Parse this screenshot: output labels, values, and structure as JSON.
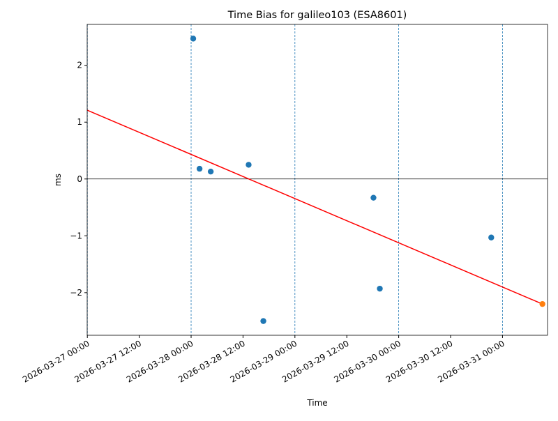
{
  "chart_data": {
    "type": "scatter",
    "title": "Time Bias for galileo103 (ESA8601)",
    "x_label": "Time",
    "y_label": "ms",
    "series": [
      {
        "type": "scatter",
        "color": "#1f77b4",
        "x": [
          "2026-03-28 00:29",
          "2026-03-28 01:57",
          "2026-03-28 04:32",
          "2026-03-28 13:18",
          "2026-03-28 16:42",
          "2026-03-29 18:10",
          "2026-03-29 19:38",
          "2026-03-30 21:24"
        ],
        "values": [
          2.47,
          0.18,
          0.13,
          0.25,
          -2.5,
          -0.33,
          -1.93,
          -1.03
        ]
      },
      {
        "type": "scatter",
        "color": "#ff7f0e",
        "x": [
          "2026-03-31 09:14"
        ],
        "values": [
          -2.2
        ]
      },
      {
        "type": "line",
        "color": "#ff0000",
        "x": [
          "2026-03-27 00:00",
          "2026-03-31 09:14"
        ],
        "values": [
          1.21,
          -2.2
        ]
      }
    ],
    "xlim": [
      "2026-03-26 23:58",
      "2026-03-31 10:25"
    ],
    "xticks": [
      "2026-03-27 00:00",
      "2026-03-27 12:00",
      "2026-03-28 00:00",
      "2026-03-28 12:00",
      "2026-03-29 00:00",
      "2026-03-29 12:00",
      "2026-03-30 00:00",
      "2026-03-30 12:00",
      "2026-03-31 00:00"
    ],
    "ylim": [
      -2.75,
      2.72
    ],
    "yticks": [
      {
        "value": -2,
        "label": "−2"
      },
      {
        "value": -1,
        "label": "−1"
      },
      0,
      1,
      2
    ],
    "x_grid": true,
    "zero_line": true
  }
}
